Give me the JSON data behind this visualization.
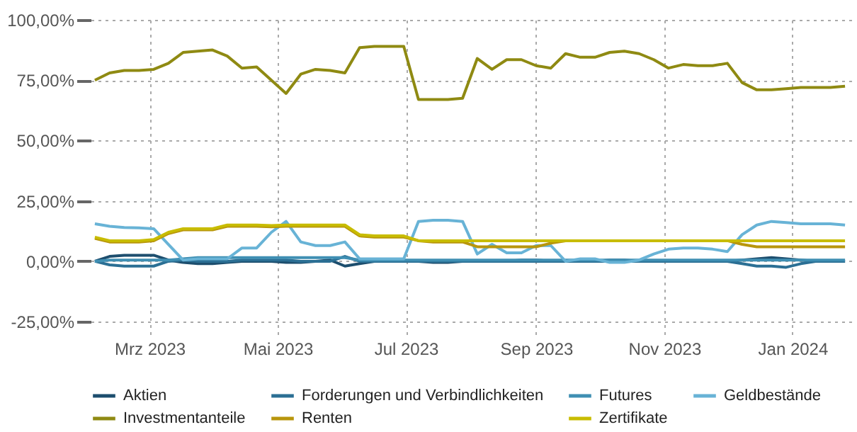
{
  "chart_data": {
    "type": "line",
    "x": [
      "2023-02-03",
      "2023-02-10",
      "2023-02-17",
      "2023-02-24",
      "2023-03-03",
      "2023-03-10",
      "2023-03-17",
      "2023-03-24",
      "2023-03-31",
      "2023-04-07",
      "2023-04-14",
      "2023-04-21",
      "2023-04-28",
      "2023-05-05",
      "2023-05-12",
      "2023-05-19",
      "2023-05-26",
      "2023-06-02",
      "2023-06-09",
      "2023-06-16",
      "2023-06-23",
      "2023-06-30",
      "2023-07-07",
      "2023-07-14",
      "2023-07-21",
      "2023-07-28",
      "2023-08-04",
      "2023-08-11",
      "2023-08-18",
      "2023-08-25",
      "2023-09-01",
      "2023-09-08",
      "2023-09-15",
      "2023-09-22",
      "2023-09-29",
      "2023-10-06",
      "2023-10-13",
      "2023-10-20",
      "2023-10-27",
      "2023-11-03",
      "2023-11-10",
      "2023-11-17",
      "2023-11-24",
      "2023-12-01",
      "2023-12-08",
      "2023-12-15",
      "2023-12-22",
      "2023-12-29",
      "2024-01-05",
      "2024-01-12",
      "2024-01-19",
      "2024-01-26"
    ],
    "series": [
      {
        "name": "Aktien",
        "color": "#1d4e6e",
        "values": [
          0,
          2,
          2.5,
          2.5,
          2.5,
          0.5,
          -0.5,
          -1,
          -1,
          -0.5,
          0,
          0,
          0,
          -0.5,
          -0.5,
          0,
          0.5,
          -2,
          -1,
          0,
          0,
          0,
          0,
          -0.5,
          -0.5,
          0,
          0,
          0,
          0,
          0.5,
          0.5,
          0,
          0,
          0,
          0,
          0.5,
          0.5,
          0,
          0,
          0,
          0,
          0,
          0,
          0,
          0.5,
          1,
          1.5,
          1,
          0.5,
          0,
          0,
          0
        ]
      },
      {
        "name": "Forderungen und Verbindlichkeiten",
        "color": "#2b6f94",
        "values": [
          0,
          -1.5,
          -2,
          -2,
          -2,
          0,
          0.5,
          0,
          0,
          0,
          0.5,
          0.5,
          0.5,
          0.5,
          0,
          0,
          0,
          2,
          0,
          0,
          0,
          0,
          0,
          0,
          0,
          0,
          0,
          0,
          0,
          0,
          0,
          0,
          0,
          0,
          0,
          0,
          0,
          0,
          0,
          0,
          0,
          0,
          0,
          0,
          -1,
          -2,
          -2,
          -2.5,
          -1,
          0,
          0,
          0
        ]
      },
      {
        "name": "Futures",
        "color": "#3f8fb3",
        "values": [
          0,
          0.5,
          0.5,
          0.5,
          0.5,
          0.5,
          1,
          1.5,
          1.5,
          1.5,
          1.5,
          1.5,
          1.5,
          1.5,
          1.5,
          1.5,
          1.5,
          1.5,
          0.5,
          0.5,
          0.5,
          0.5,
          0.5,
          0.5,
          0.5,
          0.5,
          0.5,
          0.5,
          0.5,
          0.5,
          0.5,
          0.5,
          0.5,
          0.5,
          0.5,
          0.5,
          0.5,
          0.5,
          0.5,
          0.5,
          0.5,
          0.5,
          0.5,
          0.5,
          0.5,
          0.5,
          0.5,
          0.5,
          0.5,
          0.5,
          0.5,
          0.5
        ]
      },
      {
        "name": "Geldbestände",
        "color": "#68b3d6",
        "values": [
          15.5,
          14.5,
          14,
          13.8,
          13.5,
          7,
          0.5,
          1,
          1,
          1,
          5.5,
          5.5,
          12,
          16.5,
          8,
          6.5,
          6.5,
          8,
          1,
          1,
          1,
          1,
          16.5,
          17,
          17,
          16.5,
          3,
          7,
          3.5,
          3.5,
          6.5,
          6.5,
          0,
          1,
          1,
          -0.5,
          -0.5,
          0.5,
          3,
          5,
          5.5,
          5.5,
          5,
          4,
          11,
          15,
          16.5,
          16,
          15.5,
          15.5,
          15.5,
          15
        ]
      },
      {
        "name": "Investmentanteile",
        "color": "#8f8a12",
        "values": [
          75,
          78,
          79,
          79,
          79.5,
          82,
          86.5,
          87,
          87.5,
          85,
          80,
          80.5,
          75,
          69.5,
          77.5,
          79.5,
          79,
          78,
          88.5,
          89,
          89,
          89,
          67,
          67,
          67,
          67.5,
          84,
          79.5,
          83.5,
          83.5,
          81,
          80,
          86,
          84.5,
          84.5,
          86.5,
          87,
          86,
          83.5,
          80,
          81.5,
          81,
          81,
          82,
          74,
          71,
          71,
          71.5,
          72,
          72,
          72,
          72.5
        ]
      },
      {
        "name": "Renten",
        "color": "#b8960c",
        "values": [
          9.5,
          8,
          8,
          8,
          8.5,
          11.5,
          13,
          13,
          13,
          14.5,
          14.5,
          14.5,
          14.3,
          14.5,
          14.5,
          14.5,
          14.5,
          14.5,
          10.5,
          10,
          10,
          10,
          8.5,
          8,
          8,
          8,
          6,
          6,
          6,
          6,
          6,
          7.5,
          8.5,
          8.5,
          8.5,
          8.5,
          8.5,
          8.5,
          8.5,
          8.5,
          8.5,
          8.5,
          8.5,
          8.5,
          7,
          6,
          6,
          6,
          6,
          6,
          6,
          6
        ]
      },
      {
        "name": "Zertifikate",
        "color": "#c8bc00",
        "values": [
          10,
          8.5,
          8.5,
          8.5,
          9,
          12,
          13.5,
          13.5,
          13.5,
          15,
          15,
          15,
          14.8,
          15,
          15,
          15,
          15,
          15,
          11,
          10.5,
          10.5,
          10.5,
          8.5,
          8.5,
          8.5,
          8.5,
          8.5,
          8.5,
          8.5,
          8.5,
          8.5,
          8.5,
          8.5,
          8.5,
          8.5,
          8.5,
          8.5,
          8.5,
          8.5,
          8.5,
          8.5,
          8.5,
          8.5,
          8.5,
          8.5,
          8.5,
          8.5,
          8.5,
          8.5,
          8.5,
          8.5,
          8.5
        ]
      }
    ],
    "xlim": [
      "2023-02-01",
      "2024-01-29"
    ],
    "xticks": [
      {
        "value": "2023-03-01",
        "label": "Mrz 2023"
      },
      {
        "value": "2023-05-01",
        "label": "Mai 2023"
      },
      {
        "value": "2023-07-01",
        "label": "Jul 2023"
      },
      {
        "value": "2023-09-01",
        "label": "Sep 2023"
      },
      {
        "value": "2023-11-01",
        "label": "Nov 2023"
      },
      {
        "value": "2024-01-01",
        "label": "Jan 2024"
      }
    ],
    "ylim": [
      -32,
      100
    ],
    "yticks": [
      {
        "value": -25,
        "label": "-25,00%"
      },
      {
        "value": 0,
        "label": "0,00%"
      },
      {
        "value": 25,
        "label": "25,00%"
      },
      {
        "value": 50,
        "label": "50,00%"
      },
      {
        "value": 75,
        "label": "75,00%"
      },
      {
        "value": 100,
        "label": "100,00%"
      }
    ],
    "grid": true,
    "legend": "bottom",
    "line_style": "solid",
    "marker": "none"
  }
}
